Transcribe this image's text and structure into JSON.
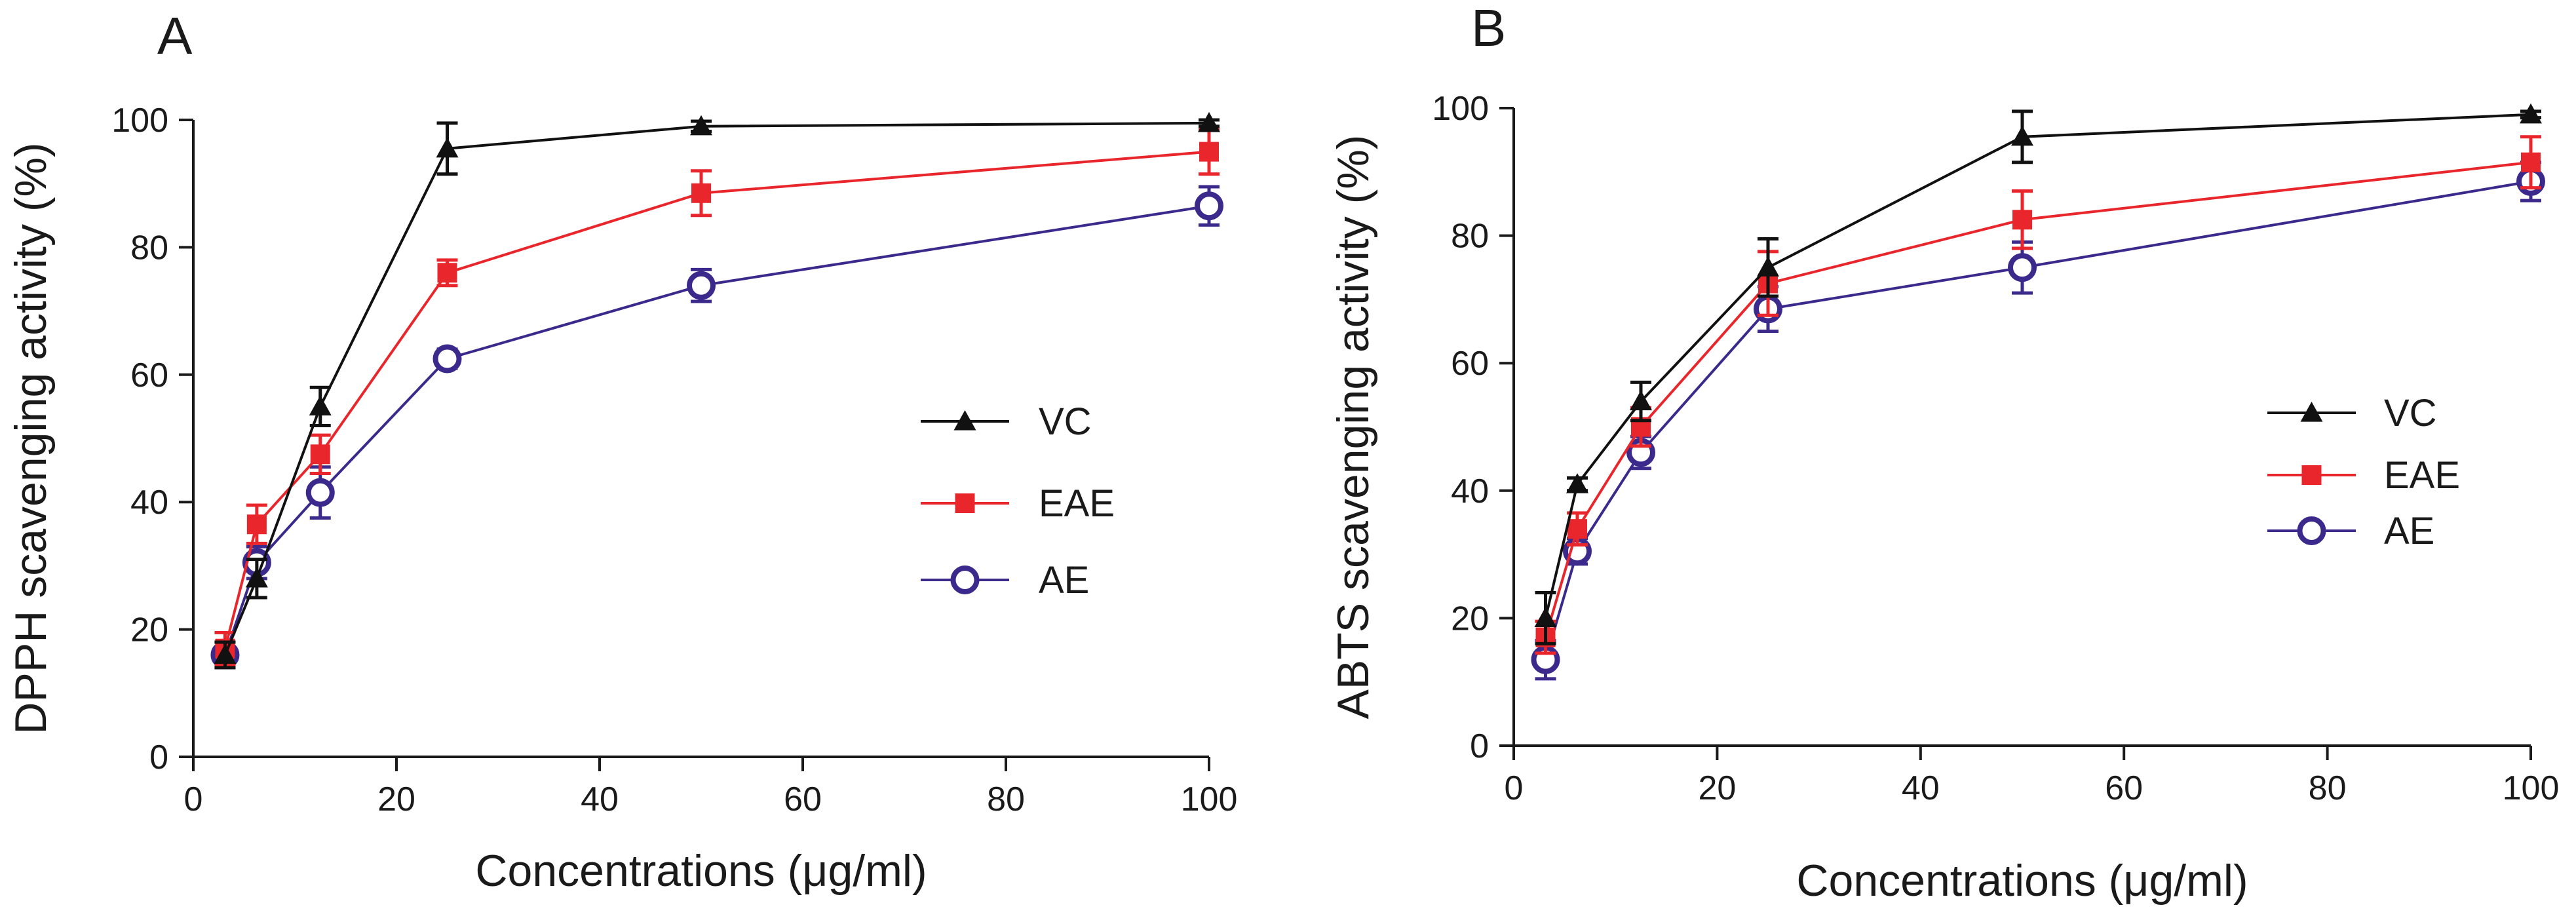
{
  "figure": {
    "panel_labels": [
      "A",
      "B"
    ]
  },
  "colors": {
    "VC": "#111111",
    "EAE": "#e8262b",
    "AE": "#3b2a8c",
    "axis": "#1a1a1a"
  },
  "chart_data": [
    {
      "panel": "A",
      "type": "line",
      "title": "",
      "xlabel": "Concentrations (μg/ml)",
      "ylabel": "DPPH scavenging activity (%)",
      "xlim": [
        0,
        100
      ],
      "ylim": [
        0,
        100
      ],
      "xticks": [
        0,
        20,
        40,
        60,
        80,
        100
      ],
      "yticks": [
        0,
        20,
        40,
        60,
        80,
        100
      ],
      "legend": [
        "VC",
        "EAE",
        "AE"
      ],
      "x": [
        3.125,
        6.25,
        12.5,
        25,
        50,
        100
      ],
      "series": [
        {
          "name": "VC",
          "marker": "triangle",
          "values": [
            16,
            28,
            55,
            95.5,
            99,
            99.5
          ],
          "errors": [
            2,
            3,
            3,
            4,
            0.8,
            0.5
          ]
        },
        {
          "name": "EAE",
          "marker": "square",
          "values": [
            17,
            36.5,
            47.5,
            76,
            88.5,
            95
          ],
          "errors": [
            2.5,
            3,
            3,
            2,
            3.5,
            3.5
          ]
        },
        {
          "name": "AE",
          "marker": "circle",
          "values": [
            16,
            30.5,
            41.5,
            62.5,
            74,
            86.5
          ],
          "errors": [
            2,
            2.5,
            4,
            1.5,
            2.5,
            3
          ]
        }
      ]
    },
    {
      "panel": "B",
      "type": "line",
      "title": "",
      "xlabel": "Concentrations (μg/ml)",
      "ylabel": "ABTS scavenging activity (%)",
      "xlim": [
        0,
        100
      ],
      "ylim": [
        0,
        100
      ],
      "xticks": [
        0,
        20,
        40,
        60,
        80,
        100
      ],
      "yticks": [
        0,
        20,
        40,
        60,
        80,
        100
      ],
      "legend": [
        "VC",
        "EAE",
        "AE"
      ],
      "x": [
        3.125,
        6.25,
        12.5,
        25,
        50,
        100
      ],
      "series": [
        {
          "name": "VC",
          "marker": "triangle",
          "values": [
            20,
            41,
            54,
            75,
            95.5,
            99
          ],
          "errors": [
            4,
            1,
            3,
            4.5,
            4,
            0.5
          ]
        },
        {
          "name": "EAE",
          "marker": "square",
          "values": [
            17,
            34,
            50,
            72.5,
            82.5,
            91.5
          ],
          "errors": [
            2.5,
            2.5,
            3,
            5,
            4.5,
            4
          ]
        },
        {
          "name": "AE",
          "marker": "circle",
          "values": [
            13.5,
            30.5,
            46,
            68.5,
            75,
            88.5
          ],
          "errors": [
            3,
            2,
            2.5,
            3.5,
            4,
            3
          ]
        }
      ]
    }
  ]
}
